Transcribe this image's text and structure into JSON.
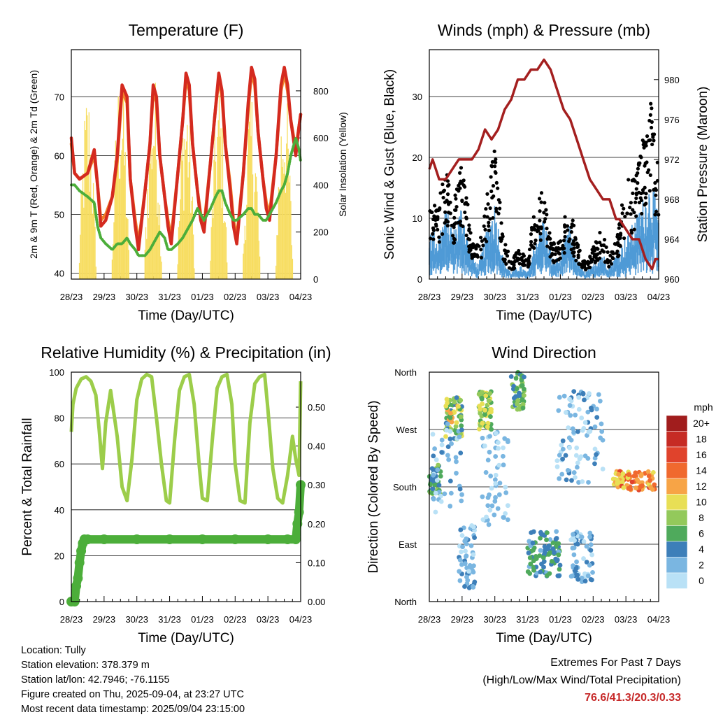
{
  "x_ticks": [
    "28/23",
    "29/23",
    "30/23",
    "31/23",
    "01/23",
    "02/23",
    "03/23",
    "04/23"
  ],
  "colors": {
    "temp2m": "#d42a1f",
    "temp9m": "#f07f2a",
    "dewpoint": "#4cae3a",
    "solar": "#f7dd60",
    "wind": "#4f9ad6",
    "gust": "#000000",
    "pressure": "#a41f1f",
    "rh": "#9ccd4a",
    "rain": "#4cae3a"
  },
  "chart_data": [
    {
      "type": "line",
      "title": "Temperature (F)",
      "xlabel": "Time (Day/UTC)",
      "ylabel": "2m & 9m T (Red, Orange) & 2m Td (Green)",
      "ylabel_right": "Solar Insolation (Yellow)",
      "xlim": [
        0,
        7
      ],
      "ylim": [
        39,
        78
      ],
      "yticks": [
        40,
        50,
        60,
        70
      ],
      "ylim_right": [
        0,
        975
      ],
      "yticks_right": [
        0,
        200,
        400,
        600,
        800
      ],
      "x": [
        0,
        0.1,
        0.25,
        0.5,
        0.7,
        0.8,
        0.9,
        1.05,
        1.25,
        1.4,
        1.55,
        1.7,
        1.8,
        1.95,
        2.05,
        2.25,
        2.4,
        2.5,
        2.6,
        2.7,
        2.85,
        2.95,
        3.05,
        3.25,
        3.4,
        3.5,
        3.6,
        3.7,
        3.85,
        3.95,
        4.05,
        4.25,
        4.4,
        4.5,
        4.6,
        4.7,
        4.85,
        4.95,
        5.05,
        5.25,
        5.4,
        5.5,
        5.6,
        5.7,
        5.85,
        5.95,
        6.05,
        6.25,
        6.4,
        6.5,
        6.6,
        6.7,
        6.85,
        6.95,
        7.0
      ],
      "series": [
        {
          "name": "2m T",
          "values": [
            63,
            57,
            56,
            57,
            61,
            55,
            48,
            49,
            53,
            60,
            72,
            70,
            56,
            48,
            44,
            54,
            62,
            72,
            70,
            60,
            53,
            48,
            45,
            57,
            66,
            74,
            72,
            62,
            54,
            49,
            47,
            59,
            68,
            74,
            71,
            62,
            54,
            48,
            45,
            57,
            69,
            75,
            73,
            64,
            56,
            51,
            49,
            60,
            72,
            75,
            72,
            66,
            60,
            65,
            67
          ]
        },
        {
          "name": "9m T",
          "values": [
            62,
            57,
            56,
            57,
            60,
            55,
            49,
            50,
            53,
            59,
            71,
            69,
            56,
            49,
            45,
            54,
            62,
            71,
            69,
            60,
            53,
            49,
            46,
            57,
            66,
            73,
            71,
            62,
            54,
            50,
            48,
            59,
            68,
            73,
            70,
            62,
            55,
            49,
            46,
            57,
            68,
            74,
            72,
            64,
            56,
            52,
            50,
            60,
            71,
            74,
            71,
            66,
            61,
            65,
            67
          ]
        },
        {
          "name": "2m Td",
          "values": [
            55,
            55,
            54,
            53,
            52,
            48,
            46,
            45,
            44,
            45,
            45,
            46,
            45,
            44,
            43,
            43,
            44,
            45,
            46,
            47,
            46,
            44,
            44,
            45,
            46,
            47,
            48,
            49,
            51,
            50,
            49,
            51,
            53,
            54,
            54,
            52,
            50,
            49,
            49,
            50,
            51,
            51,
            50,
            50,
            49,
            49,
            50,
            52,
            54,
            55,
            57,
            60,
            63,
            61,
            59
          ]
        }
      ],
      "solar": {
        "days": [
          0.5,
          1.5,
          2.5,
          3.5,
          4.5,
          5.5,
          6.5
        ],
        "peaks": [
          840,
          945,
          930,
          860,
          860,
          830,
          880
        ]
      }
    },
    {
      "type": "scatter",
      "title": "Winds (mph) & Pressure (mb)",
      "xlabel": "Time (Day/UTC)",
      "ylabel": "Sonic Wind & Gust (Blue, Black)",
      "ylabel_right": "Station Pressure (Maroon)",
      "xlim": [
        0,
        7
      ],
      "ylim": [
        0,
        37.7
      ],
      "yticks": [
        0,
        10,
        20,
        30
      ],
      "ylim_right": [
        960,
        983
      ],
      "yticks_right": [
        960,
        964,
        968,
        972,
        976,
        980
      ],
      "pressure": {
        "x": [
          0,
          0.1,
          0.2,
          0.3,
          0.5,
          0.7,
          0.9,
          1.1,
          1.3,
          1.5,
          1.7,
          1.9,
          2.1,
          2.3,
          2.5,
          2.7,
          2.9,
          3.1,
          3.3,
          3.5,
          3.7,
          3.9,
          4.0,
          4.1,
          4.3,
          4.5,
          4.7,
          4.9,
          5.1,
          5.3,
          5.5,
          5.7,
          5.8,
          6.0,
          6.2,
          6.4,
          6.5,
          6.6,
          6.8,
          6.9,
          7.0
        ],
        "values": [
          971,
          972,
          971,
          970,
          970,
          971,
          972,
          972,
          972,
          973,
          975,
          974,
          975,
          977,
          978,
          980,
          980,
          981,
          981,
          982,
          981,
          979,
          978,
          977,
          976,
          974,
          972,
          970,
          969,
          968,
          968,
          966,
          966,
          965,
          964,
          964,
          963,
          962,
          961,
          962,
          962
        ]
      },
      "wind_envelope": {
        "x": [
          0,
          0.25,
          0.5,
          0.75,
          1.0,
          1.25,
          1.5,
          1.75,
          2.0,
          2.25,
          2.5,
          2.75,
          3.0,
          3.25,
          3.5,
          3.75,
          4.0,
          4.25,
          4.5,
          4.75,
          5.0,
          5.25,
          5.5,
          5.75,
          6.0,
          6.25,
          6.5,
          6.75,
          7.0
        ],
        "values": [
          8,
          6,
          10,
          7,
          11,
          4,
          2,
          7,
          11,
          3,
          1,
          2,
          1,
          6,
          9,
          3,
          3,
          8,
          3,
          1,
          2,
          4,
          2,
          4,
          6,
          8,
          11,
          14,
          10
        ]
      },
      "gust_envelope": {
        "x": [
          0,
          0.25,
          0.5,
          0.75,
          1.0,
          1.25,
          1.5,
          1.75,
          2.0,
          2.25,
          2.5,
          2.75,
          3.0,
          3.25,
          3.5,
          3.75,
          4.0,
          4.25,
          4.5,
          4.75,
          5.0,
          5.25,
          5.5,
          5.75,
          6.0,
          6.25,
          6.5,
          6.75,
          7.0
        ],
        "values": [
          15,
          11,
          18,
          13,
          20,
          8,
          5,
          13,
          21,
          7,
          3,
          5,
          3,
          13,
          15,
          6,
          6,
          13,
          6,
          3,
          5,
          8,
          4,
          7,
          16,
          17,
          22,
          29,
          19
        ]
      }
    },
    {
      "type": "line",
      "title": "Relative Humidity (%) & Precipitation (in)",
      "xlabel": "Time (Day/UTC)",
      "ylabel": "Percent & Total Rainfall",
      "xlim": [
        0,
        7
      ],
      "ylim": [
        0,
        100
      ],
      "yticks": [
        0,
        20,
        40,
        60,
        80,
        100
      ],
      "ylim_right": [
        0,
        0.59
      ],
      "yticks_right": [
        "0.00",
        "0.10",
        "0.20",
        "0.30",
        "0.40",
        "0.50"
      ],
      "rh": {
        "x": [
          0,
          0.05,
          0.15,
          0.3,
          0.45,
          0.6,
          0.75,
          0.85,
          0.95,
          1.05,
          1.2,
          1.4,
          1.55,
          1.7,
          1.85,
          2.0,
          2.15,
          2.3,
          2.45,
          2.6,
          2.75,
          2.9,
          3.0,
          3.15,
          3.3,
          3.45,
          3.6,
          3.75,
          3.9,
          4.0,
          4.15,
          4.3,
          4.45,
          4.6,
          4.75,
          4.9,
          5.0,
          5.15,
          5.3,
          5.45,
          5.6,
          5.75,
          5.9,
          6.0,
          6.15,
          6.3,
          6.45,
          6.6,
          6.75,
          6.85,
          6.95,
          7.0
        ],
        "values": [
          74,
          86,
          93,
          97,
          98,
          96,
          90,
          75,
          58,
          78,
          92,
          72,
          50,
          44,
          62,
          88,
          97,
          99,
          98,
          80,
          60,
          44,
          43,
          70,
          92,
          98,
          99,
          86,
          60,
          45,
          44,
          70,
          93,
          98,
          99,
          86,
          60,
          44,
          43,
          78,
          95,
          98,
          99,
          84,
          58,
          45,
          43,
          55,
          72,
          62,
          55,
          96
        ]
      },
      "rain": {
        "x": [
          0,
          0.1,
          0.15,
          0.2,
          0.25,
          0.3,
          0.35,
          0.4,
          0.5,
          1.0,
          2.0,
          3.0,
          4.0,
          5.0,
          6.0,
          6.6,
          6.85,
          6.9,
          6.95,
          7.0
        ],
        "values": [
          0,
          0,
          0.04,
          0.06,
          0.1,
          0.13,
          0.15,
          0.16,
          0.16,
          0.16,
          0.16,
          0.16,
          0.16,
          0.16,
          0.16,
          0.16,
          0.16,
          0.2,
          0.23,
          0.3
        ]
      }
    },
    {
      "type": "scatter",
      "title": "Wind Direction",
      "xlabel": "Time (Day/UTC)",
      "ylabel": "Direction (Colored By Speed)",
      "xlim": [
        0,
        7
      ],
      "ylim": [
        0,
        360
      ],
      "yticks": [
        "North",
        "East",
        "South",
        "West",
        "North"
      ],
      "legend": {
        "unit": "mph",
        "labels": [
          "20+",
          "18",
          "16",
          "14",
          "12",
          "10",
          "8",
          "6",
          "4",
          "2",
          "0"
        ],
        "colors": [
          "#a11d1d",
          "#c62b24",
          "#e0432c",
          "#f0692e",
          "#f7a446",
          "#e8df55",
          "#93c95b",
          "#4faa5c",
          "#3d7fb9",
          "#7ab6e1",
          "#b9e1f6"
        ]
      }
    }
  ],
  "info": {
    "location": "Location: Tully",
    "elevation": "Station elevation: 378.379 m",
    "latlon": "Station lat/lon: 42.7946; -76.1155",
    "created": "Figure created on Thu, 2025-09-04, at 23:27 UTC",
    "recent": "Most recent data timestamp: 2025/09/04 23:15:00"
  },
  "extremes": {
    "title": "Extremes For Past 7 Days",
    "subtitle": "(High/Low/Max Wind/Total Precipitation)",
    "values": "76.6/41.3/20.3/0.33"
  }
}
